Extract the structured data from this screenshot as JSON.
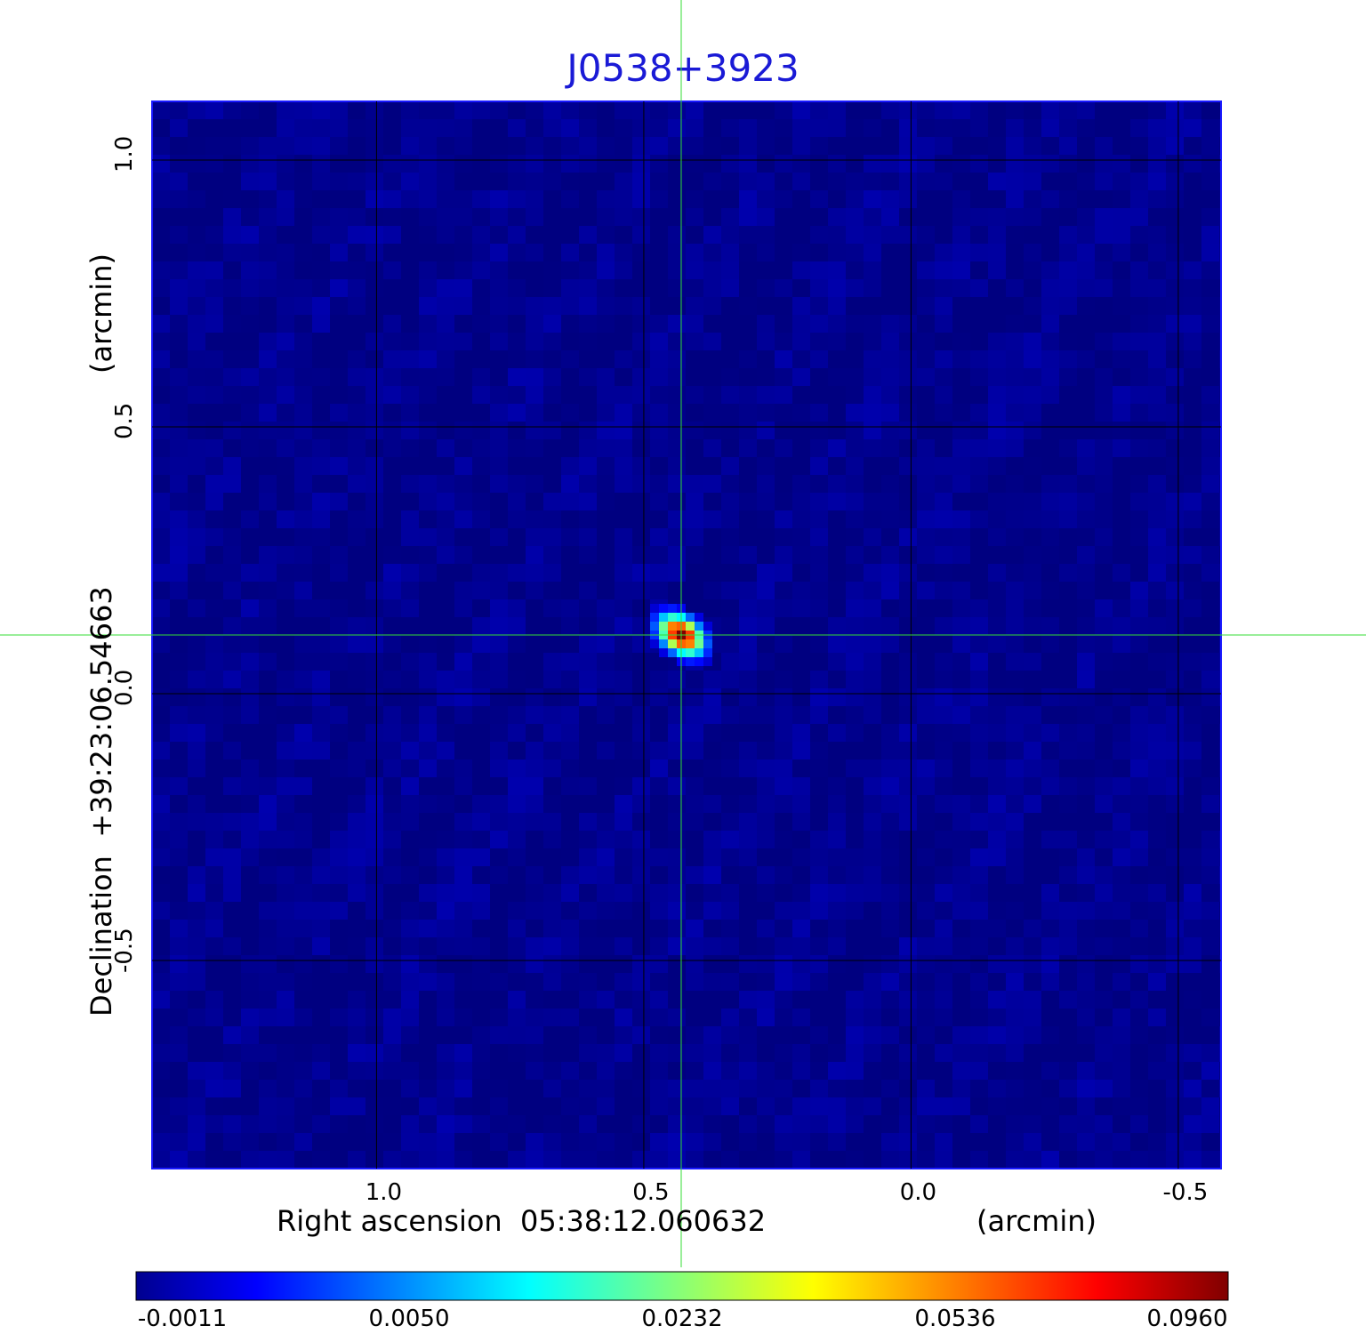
{
  "chart_data": {
    "type": "heatmap",
    "title": "J0538+3923",
    "xlabel": "Right ascension  05:38:12.060632",
    "xunit": "(arcmin)",
    "ylabel": "Declination  +39:23:06.54663",
    "yunit": "(arcmin)",
    "xlim": [
      1.42,
      -0.58
    ],
    "ylim": [
      -0.89,
      1.11
    ],
    "x_ticks": [
      1.0,
      0.5,
      0.0,
      -0.5
    ],
    "x_tick_labels": [
      "1.0",
      "0.5",
      "0.0",
      "-0.5"
    ],
    "y_ticks": [
      1.0,
      0.5,
      0.0,
      -0.5
    ],
    "y_tick_labels": [
      "1.0",
      "0.5",
      "0.0",
      "-0.5"
    ],
    "grid": true,
    "colormap": "jet",
    "colorbar_ticks": [
      -0.0011,
      0.005,
      0.0232,
      0.0536,
      0.096
    ],
    "colorbar_tick_labels": [
      "-0.0011",
      "0.0050",
      "0.0232",
      "0.0536",
      "0.0960"
    ],
    "value_range": [
      -0.0011,
      0.096
    ],
    "background_level": 0.0,
    "peak": {
      "x": 0.43,
      "y": 0.11,
      "value": 0.096
    },
    "crosshair": {
      "x": 0.43,
      "y": 0.11,
      "color": "#33dd33"
    }
  }
}
